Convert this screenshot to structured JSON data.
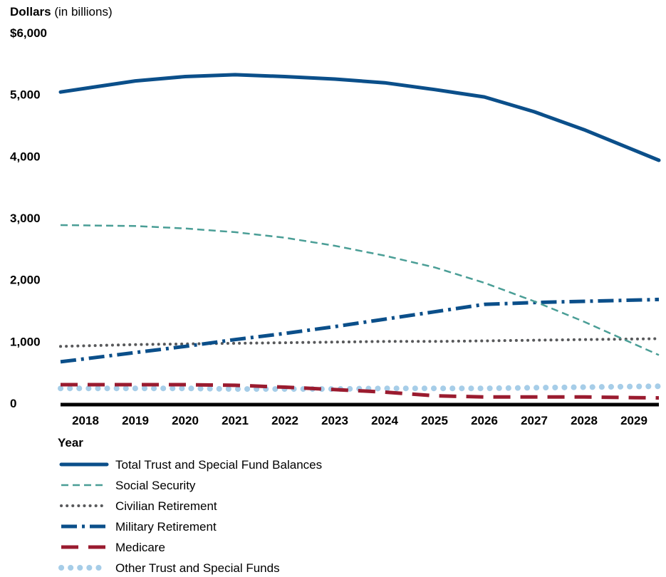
{
  "chart_data": {
    "type": "line",
    "ylabel_bold": "Dollars",
    "ylabel_rest": " (in billions)",
    "xlabel": "Year",
    "ylim": [
      0,
      6000
    ],
    "yticks": [
      {
        "value": 6000,
        "label": "$6,000"
      },
      {
        "value": 5000,
        "label": "5,000"
      },
      {
        "value": 4000,
        "label": "4,000"
      },
      {
        "value": 3000,
        "label": "3,000"
      },
      {
        "value": 2000,
        "label": "2,000"
      },
      {
        "value": 1000,
        "label": "1,000"
      },
      {
        "value": 0,
        "label": "0"
      }
    ],
    "categories": [
      "2018",
      "2019",
      "2020",
      "2021",
      "2022",
      "2023",
      "2024",
      "2025",
      "2026",
      "2027",
      "2028",
      "2029"
    ],
    "legend_position": "bottom",
    "series": [
      {
        "name": "Total Trust and Special Fund Balances",
        "color": "#0b4f8a",
        "style": "solid",
        "values": [
          5100,
          5220,
          5290,
          5320,
          5290,
          5250,
          5190,
          5080,
          4960,
          4720,
          4430,
          4100
        ]
      },
      {
        "name": "Social Security",
        "color": "#4a9e96",
        "style": "dashed",
        "values": [
          2880,
          2870,
          2830,
          2770,
          2680,
          2550,
          2390,
          2200,
          1950,
          1650,
          1320,
          960
        ]
      },
      {
        "name": "Civilian Retirement",
        "color": "#58595b",
        "style": "dotted",
        "values": [
          930,
          950,
          960,
          970,
          980,
          990,
          1000,
          1000,
          1010,
          1020,
          1030,
          1040
        ]
      },
      {
        "name": "Military Retirement",
        "color": "#0b4f8a",
        "style": "dashdot",
        "values": [
          720,
          820,
          920,
          1030,
          1130,
          1240,
          1360,
          1480,
          1600,
          1630,
          1650,
          1670
        ]
      },
      {
        "name": "Medicare",
        "color": "#9a1b2f",
        "style": "longdash",
        "values": [
          300,
          300,
          300,
          290,
          260,
          220,
          180,
          120,
          100,
          100,
          100,
          90
        ]
      },
      {
        "name": "Other Trust and Special Funds",
        "color": "#a6cde8",
        "style": "bigdots",
        "values": [
          240,
          240,
          240,
          230,
          230,
          230,
          240,
          240,
          240,
          250,
          260,
          270
        ]
      }
    ]
  }
}
